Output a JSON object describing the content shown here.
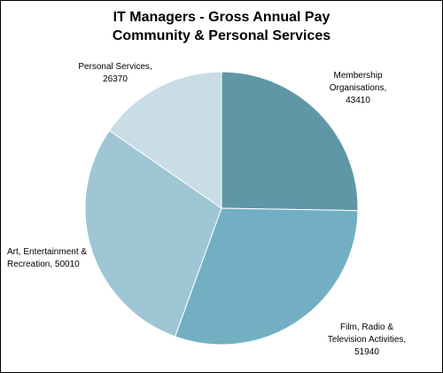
{
  "chart_data": {
    "type": "pie",
    "title": [
      "IT Managers - Gross Annual Pay",
      "Community & Personal Services"
    ],
    "slices": [
      {
        "name": "Membership Organisations",
        "value": 43410,
        "label_lines": [
          "Membership",
          "Organisations,",
          "43410"
        ],
        "color": "#5f97a7"
      },
      {
        "name": "Film, Radio & Television Activities",
        "value": 51940,
        "label_lines": [
          "Film, Radio &",
          "Television Activities,",
          "51940"
        ],
        "color": "#72afc2"
      },
      {
        "name": "Art, Entertainment & Recreation",
        "value": 50010,
        "label_lines": [
          "Art, Entertainment &",
          "Recreation, 50010"
        ],
        "color": "#9fc6d5"
      },
      {
        "name": "Personal Services",
        "value": 26370,
        "label_lines": [
          "Personal Services,",
          "26370"
        ],
        "color": "#c8dde6"
      }
    ],
    "start_angle": "12 o'clock",
    "direction": "clockwise",
    "slice_border": "#ffffff"
  }
}
